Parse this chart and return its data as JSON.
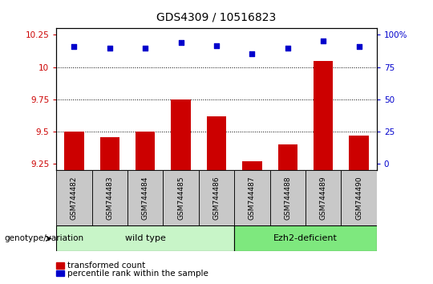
{
  "title": "GDS4309 / 10516823",
  "samples": [
    "GSM744482",
    "GSM744483",
    "GSM744484",
    "GSM744485",
    "GSM744486",
    "GSM744487",
    "GSM744488",
    "GSM744489",
    "GSM744490"
  ],
  "transformed_count": [
    9.5,
    9.46,
    9.5,
    9.75,
    9.62,
    9.27,
    9.4,
    10.05,
    9.47
  ],
  "percentile_rank": [
    87,
    86,
    86,
    90,
    88,
    82,
    86,
    91,
    87
  ],
  "ylim_left": [
    9.2,
    10.3
  ],
  "ylim_right": [
    0,
    100
  ],
  "yticks_left": [
    9.25,
    9.5,
    9.75,
    10.0,
    10.25
  ],
  "ytick_labels_left": [
    "9.25",
    "9.5",
    "9.75",
    "10",
    "10.25"
  ],
  "yticks_right": [
    0,
    25,
    50,
    75,
    100
  ],
  "ytick_labels_right": [
    "0",
    "25",
    "50",
    "75",
    "100%"
  ],
  "bar_color": "#cc0000",
  "dot_color": "#0000cc",
  "wt_count": 5,
  "ez_count": 4,
  "wild_type_label": "wild type",
  "ezh2_label": "Ezh2-deficient",
  "genotype_label": "genotype/variation",
  "legend_bar_label": "transformed count",
  "legend_dot_label": "percentile rank within the sample",
  "light_green_wt": "#c8f5c8",
  "light_green_ez": "#7ee87e",
  "gray_bg": "#c8c8c8",
  "axis_color_left": "#cc0000",
  "axis_color_right": "#0000cc",
  "dotlines": [
    9.5,
    9.75,
    10.0
  ]
}
